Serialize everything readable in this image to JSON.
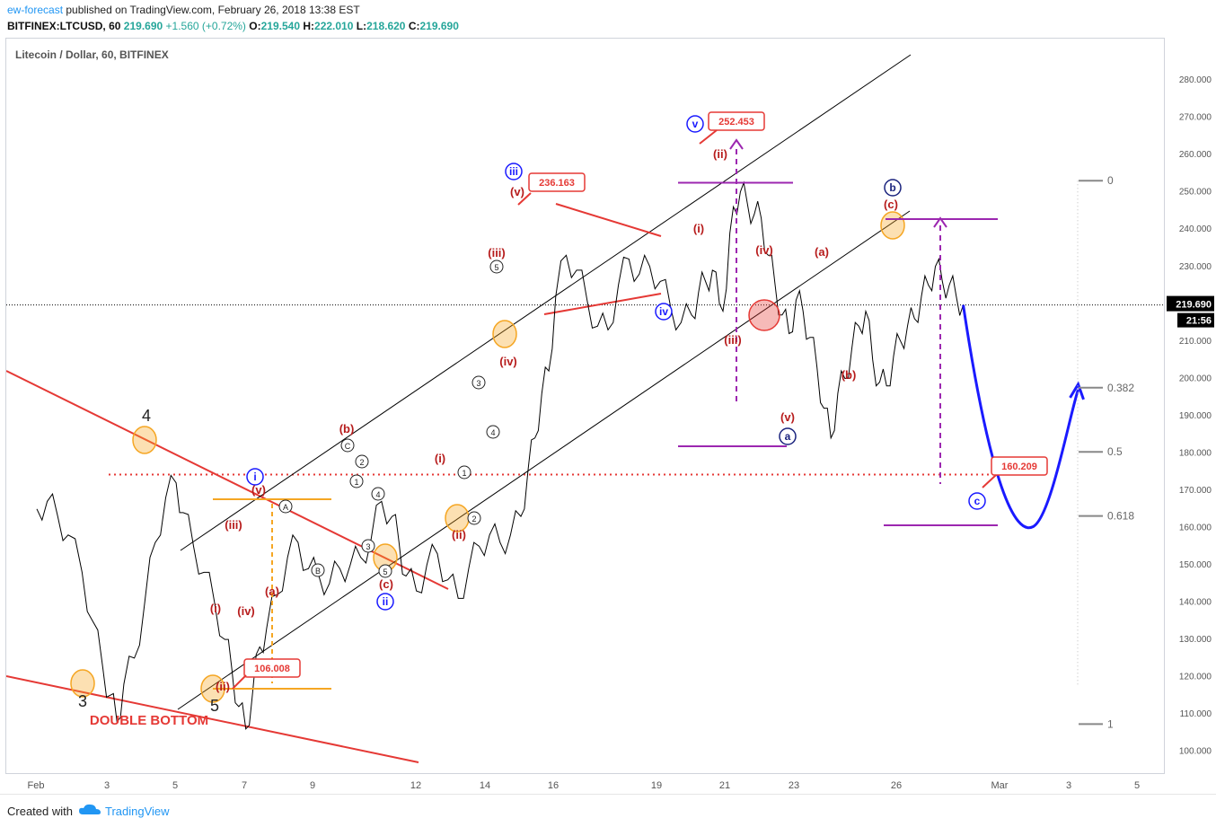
{
  "header": {
    "author": "ew-forecast",
    "published": "published on TradingView.com, February 26, 2018 13:38 EST",
    "symbol": "BITFINEX:LTCUSD, 60",
    "last": "219.690",
    "change": "+1.560 (+0.72%)",
    "ohlc_open_label": "O:",
    "ohlc_open": "219.540",
    "ohlc_high_label": "H:",
    "ohlc_high": "222.010",
    "ohlc_low_label": "L:",
    "ohlc_low": "218.620",
    "ohlc_close_label": "C:",
    "ohlc_close": "219.690"
  },
  "footer": {
    "created_with": "Created with",
    "brand": "TradingView"
  },
  "colors": {
    "wave_red": "#b71c1c",
    "trend_red": "#e53935",
    "orange": "#f5a623",
    "purple": "#9c27b0",
    "blue": "#1a1aff",
    "navy": "#1a237e",
    "black": "#000000"
  },
  "chart_data": {
    "type": "line",
    "title": "Litecoin / Dollar, 60, BITFINEX",
    "ylim": [
      84,
      284
    ],
    "y_ticks": [
      90,
      100,
      110,
      120,
      130,
      140,
      150,
      160,
      170,
      180,
      190,
      200,
      210,
      220,
      230,
      240,
      250,
      260,
      270,
      280
    ],
    "y_tick_labels": [
      "90.000",
      "100.000",
      "110.000",
      "120.000",
      "130.000",
      "140.000",
      "150.000",
      "160.000",
      "170.000",
      "180.000",
      "190.000",
      "200.000",
      "210.000",
      "220.000",
      "230.000",
      "240.000",
      "250.000",
      "260.000",
      "270.000",
      "280.000"
    ],
    "x_ticks": [
      "Feb",
      "3",
      "5",
      "7",
      "9",
      "12",
      "14",
      "16",
      "19",
      "21",
      "23",
      "26",
      "Mar",
      "3",
      "5"
    ],
    "current_price": "219.690",
    "countdown": "21:56",
    "price_path_x_days": [
      0.0,
      0.3,
      0.6,
      0.9,
      1.3,
      1.6,
      1.9,
      2.1,
      2.3,
      2.5,
      2.8,
      3.1,
      3.4,
      3.7,
      4.0,
      4.2,
      4.5,
      4.8,
      5.1,
      5.4,
      5.6,
      5.8,
      6.0,
      6.2,
      6.4,
      6.6,
      6.9,
      7.2,
      7.5,
      7.8,
      8.1,
      8.4,
      8.7,
      9.0,
      9.3,
      9.6,
      9.9,
      10.2,
      10.4,
      10.6,
      10.9,
      11.2,
      11.5,
      11.8,
      12.1,
      12.4,
      12.7,
      13.0,
      13.3,
      13.6,
      13.9,
      14.1,
      14.3,
      14.5,
      14.7,
      14.9,
      15.2,
      15.5,
      15.8,
      16.1,
      16.4,
      16.7,
      17.0,
      17.3,
      17.6,
      17.9,
      18.2,
      18.5,
      18.8,
      19.0,
      19.2,
      19.4,
      19.6,
      19.8,
      20.0,
      20.2,
      20.4,
      20.6,
      20.8,
      21.0,
      21.2,
      21.4,
      21.6,
      21.8,
      22.0,
      22.2,
      22.4,
      22.6,
      22.8,
      23.0,
      23.2,
      23.4,
      23.6,
      23.8,
      24.0,
      24.2,
      24.4,
      24.6,
      24.8,
      25.0,
      25.2,
      25.4,
      25.6,
      25.8,
      26.0,
      26.2,
      26.4,
      26.6
    ],
    "price_path_values": [
      165,
      167,
      163,
      158,
      148,
      135,
      122,
      115,
      108,
      118,
      125,
      140,
      156,
      168,
      172,
      164,
      155,
      148,
      140,
      130,
      122,
      112,
      106,
      116,
      128,
      133,
      142,
      152,
      156,
      149,
      147,
      145,
      149,
      150,
      152,
      157,
      167,
      163,
      156,
      147,
      143,
      150,
      153,
      146,
      141,
      149,
      155,
      158,
      156,
      158,
      163,
      175,
      184,
      196,
      202,
      222,
      233,
      229,
      221,
      214,
      213,
      225,
      232,
      228,
      230,
      226,
      219,
      215,
      217,
      223,
      226,
      229,
      220,
      224,
      246,
      250,
      247,
      244,
      243,
      233,
      225,
      217,
      212,
      221,
      218,
      211,
      203,
      192,
      184,
      196,
      200,
      208,
      214,
      218,
      205,
      199,
      198,
      206,
      210,
      214,
      216,
      222,
      225,
      230,
      226,
      225,
      222,
      219.69
    ],
    "projection_path": {
      "start_x_day": 26.6,
      "start_value": 219.69,
      "low_x_day": 28.6,
      "low_value": 160.209,
      "end_x_day": 29.9,
      "end_value": 197
    },
    "series": [],
    "reference_lines": [
      {
        "label": "current",
        "value": 219.69
      },
      {
        "label": "horizontal resistance",
        "value": 174.2
      }
    ],
    "price_labels": [
      {
        "text": "252.453",
        "value": 252.453
      },
      {
        "text": "236.163",
        "value": 236.163
      },
      {
        "text": "160.209",
        "value": 160.209
      },
      {
        "text": "106.008",
        "value": 106.008
      }
    ],
    "fibonacci": [
      {
        "ratio": "0",
        "value": 253.0
      },
      {
        "ratio": "0.382",
        "value": 197.5
      },
      {
        "ratio": "0.5",
        "value": 180.3
      },
      {
        "ratio": "0.618",
        "value": 163.1
      },
      {
        "ratio": "1",
        "value": 107.3
      }
    ],
    "annotations": {
      "double_bottom": "DOUBLE BOTTOM",
      "wave_4": "4",
      "wave_3": "3",
      "wave_5": "5",
      "blue_waves": [
        "i",
        "ii",
        "iii",
        "iv",
        "v",
        "a",
        "b",
        "c"
      ],
      "red_waves": [
        "(i)",
        "(ii)",
        "(iii)",
        "(iv)",
        "(v)",
        "(a)",
        "(b)",
        "(c)"
      ],
      "circled_numbers": [
        "1",
        "2",
        "3",
        "4",
        "5",
        "A",
        "B",
        "C"
      ]
    }
  }
}
